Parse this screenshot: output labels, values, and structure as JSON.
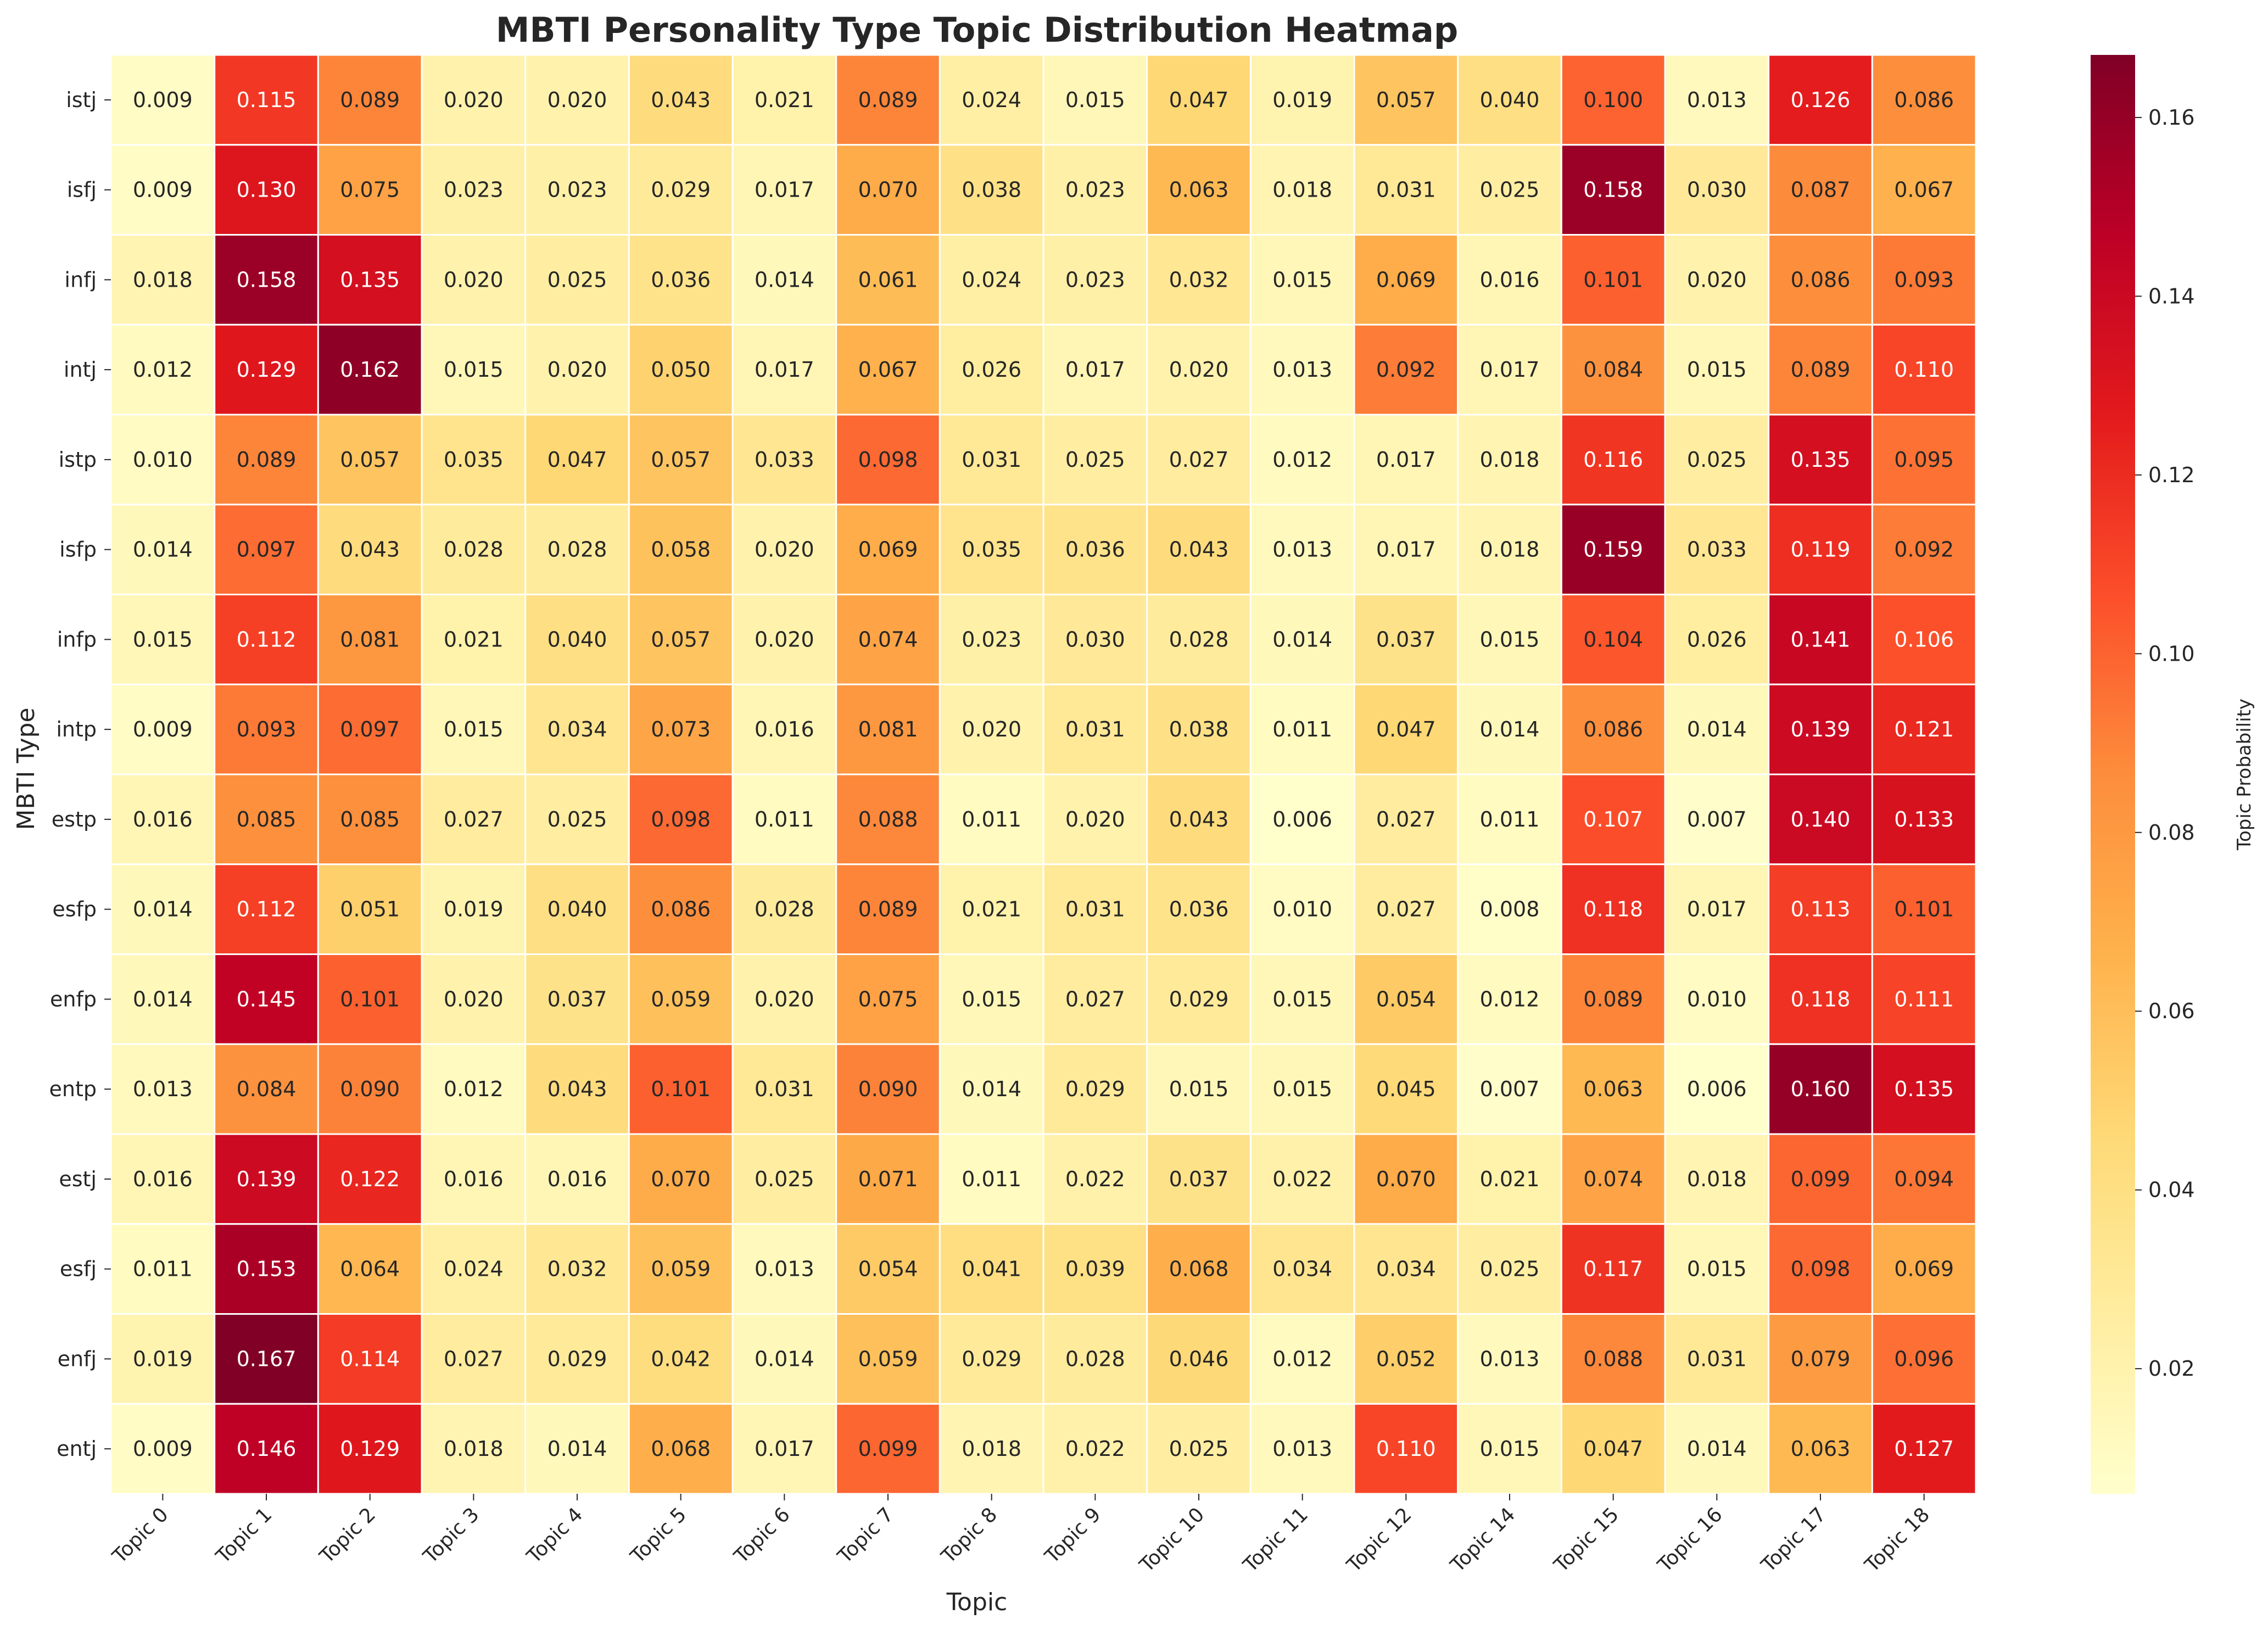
{
  "chart_data": {
    "type": "heatmap",
    "title": "MBTI Personality Type Topic Distribution Heatmap",
    "xlabel": "Topic",
    "ylabel": "MBTI Type",
    "colorbar_label": "Topic Probability",
    "colormap": "YlOrRd",
    "vmin": 0.006,
    "vmax": 0.167,
    "colorbar_ticks": [
      "0.02",
      "0.04",
      "0.06",
      "0.08",
      "0.10",
      "0.12",
      "0.14",
      "0.16"
    ],
    "x_categories": [
      "Topic 0",
      "Topic 1",
      "Topic 2",
      "Topic 3",
      "Topic 4",
      "Topic 5",
      "Topic 6",
      "Topic 7",
      "Topic 8",
      "Topic 9",
      "Topic 10",
      "Topic 11",
      "Topic 12",
      "Topic 14",
      "Topic 15",
      "Topic 16",
      "Topic 17",
      "Topic 18"
    ],
    "y_categories": [
      "istj",
      "isfj",
      "infj",
      "intj",
      "istp",
      "isfp",
      "infp",
      "intp",
      "estp",
      "esfp",
      "enfp",
      "entp",
      "estj",
      "esfj",
      "enfj",
      "entj"
    ],
    "values": [
      [
        0.009,
        0.115,
        0.089,
        0.02,
        0.02,
        0.043,
        0.021,
        0.089,
        0.024,
        0.015,
        0.047,
        0.019,
        0.057,
        0.04,
        0.1,
        0.013,
        0.126,
        0.086
      ],
      [
        0.009,
        0.13,
        0.075,
        0.023,
        0.023,
        0.029,
        0.017,
        0.07,
        0.038,
        0.023,
        0.063,
        0.018,
        0.031,
        0.025,
        0.158,
        0.03,
        0.087,
        0.067
      ],
      [
        0.018,
        0.158,
        0.135,
        0.02,
        0.025,
        0.036,
        0.014,
        0.061,
        0.024,
        0.023,
        0.032,
        0.015,
        0.069,
        0.016,
        0.101,
        0.02,
        0.086,
        0.093
      ],
      [
        0.012,
        0.129,
        0.162,
        0.015,
        0.02,
        0.05,
        0.017,
        0.067,
        0.026,
        0.017,
        0.02,
        0.013,
        0.092,
        0.017,
        0.084,
        0.015,
        0.089,
        0.11
      ],
      [
        0.01,
        0.089,
        0.057,
        0.035,
        0.047,
        0.057,
        0.033,
        0.098,
        0.031,
        0.025,
        0.027,
        0.012,
        0.017,
        0.018,
        0.116,
        0.025,
        0.135,
        0.095
      ],
      [
        0.014,
        0.097,
        0.043,
        0.028,
        0.028,
        0.058,
        0.02,
        0.069,
        0.035,
        0.036,
        0.043,
        0.013,
        0.017,
        0.018,
        0.159,
        0.033,
        0.119,
        0.092
      ],
      [
        0.015,
        0.112,
        0.081,
        0.021,
        0.04,
        0.057,
        0.02,
        0.074,
        0.023,
        0.03,
        0.028,
        0.014,
        0.037,
        0.015,
        0.104,
        0.026,
        0.141,
        0.106
      ],
      [
        0.009,
        0.093,
        0.097,
        0.015,
        0.034,
        0.073,
        0.016,
        0.081,
        0.02,
        0.031,
        0.038,
        0.011,
        0.047,
        0.014,
        0.086,
        0.014,
        0.139,
        0.121
      ],
      [
        0.016,
        0.085,
        0.085,
        0.027,
        0.025,
        0.098,
        0.011,
        0.088,
        0.011,
        0.02,
        0.043,
        0.006,
        0.027,
        0.011,
        0.107,
        0.007,
        0.14,
        0.133
      ],
      [
        0.014,
        0.112,
        0.051,
        0.019,
        0.04,
        0.086,
        0.028,
        0.089,
        0.021,
        0.031,
        0.036,
        0.01,
        0.027,
        0.008,
        0.118,
        0.017,
        0.113,
        0.101
      ],
      [
        0.014,
        0.145,
        0.101,
        0.02,
        0.037,
        0.059,
        0.02,
        0.075,
        0.015,
        0.027,
        0.029,
        0.015,
        0.054,
        0.012,
        0.089,
        0.01,
        0.118,
        0.111
      ],
      [
        0.013,
        0.084,
        0.09,
        0.012,
        0.043,
        0.101,
        0.031,
        0.09,
        0.014,
        0.029,
        0.015,
        0.015,
        0.045,
        0.007,
        0.063,
        0.006,
        0.16,
        0.135
      ],
      [
        0.016,
        0.139,
        0.122,
        0.016,
        0.016,
        0.07,
        0.025,
        0.071,
        0.011,
        0.022,
        0.037,
        0.022,
        0.07,
        0.021,
        0.074,
        0.018,
        0.099,
        0.094
      ],
      [
        0.011,
        0.153,
        0.064,
        0.024,
        0.032,
        0.059,
        0.013,
        0.054,
        0.041,
        0.039,
        0.068,
        0.034,
        0.034,
        0.025,
        0.117,
        0.015,
        0.098,
        0.069
      ],
      [
        0.019,
        0.167,
        0.114,
        0.027,
        0.029,
        0.042,
        0.014,
        0.059,
        0.029,
        0.028,
        0.046,
        0.012,
        0.052,
        0.013,
        0.088,
        0.031,
        0.079,
        0.096
      ],
      [
        0.009,
        0.146,
        0.129,
        0.018,
        0.014,
        0.068,
        0.017,
        0.099,
        0.018,
        0.022,
        0.025,
        0.013,
        0.11,
        0.015,
        0.047,
        0.014,
        0.063,
        0.127
      ]
    ]
  }
}
